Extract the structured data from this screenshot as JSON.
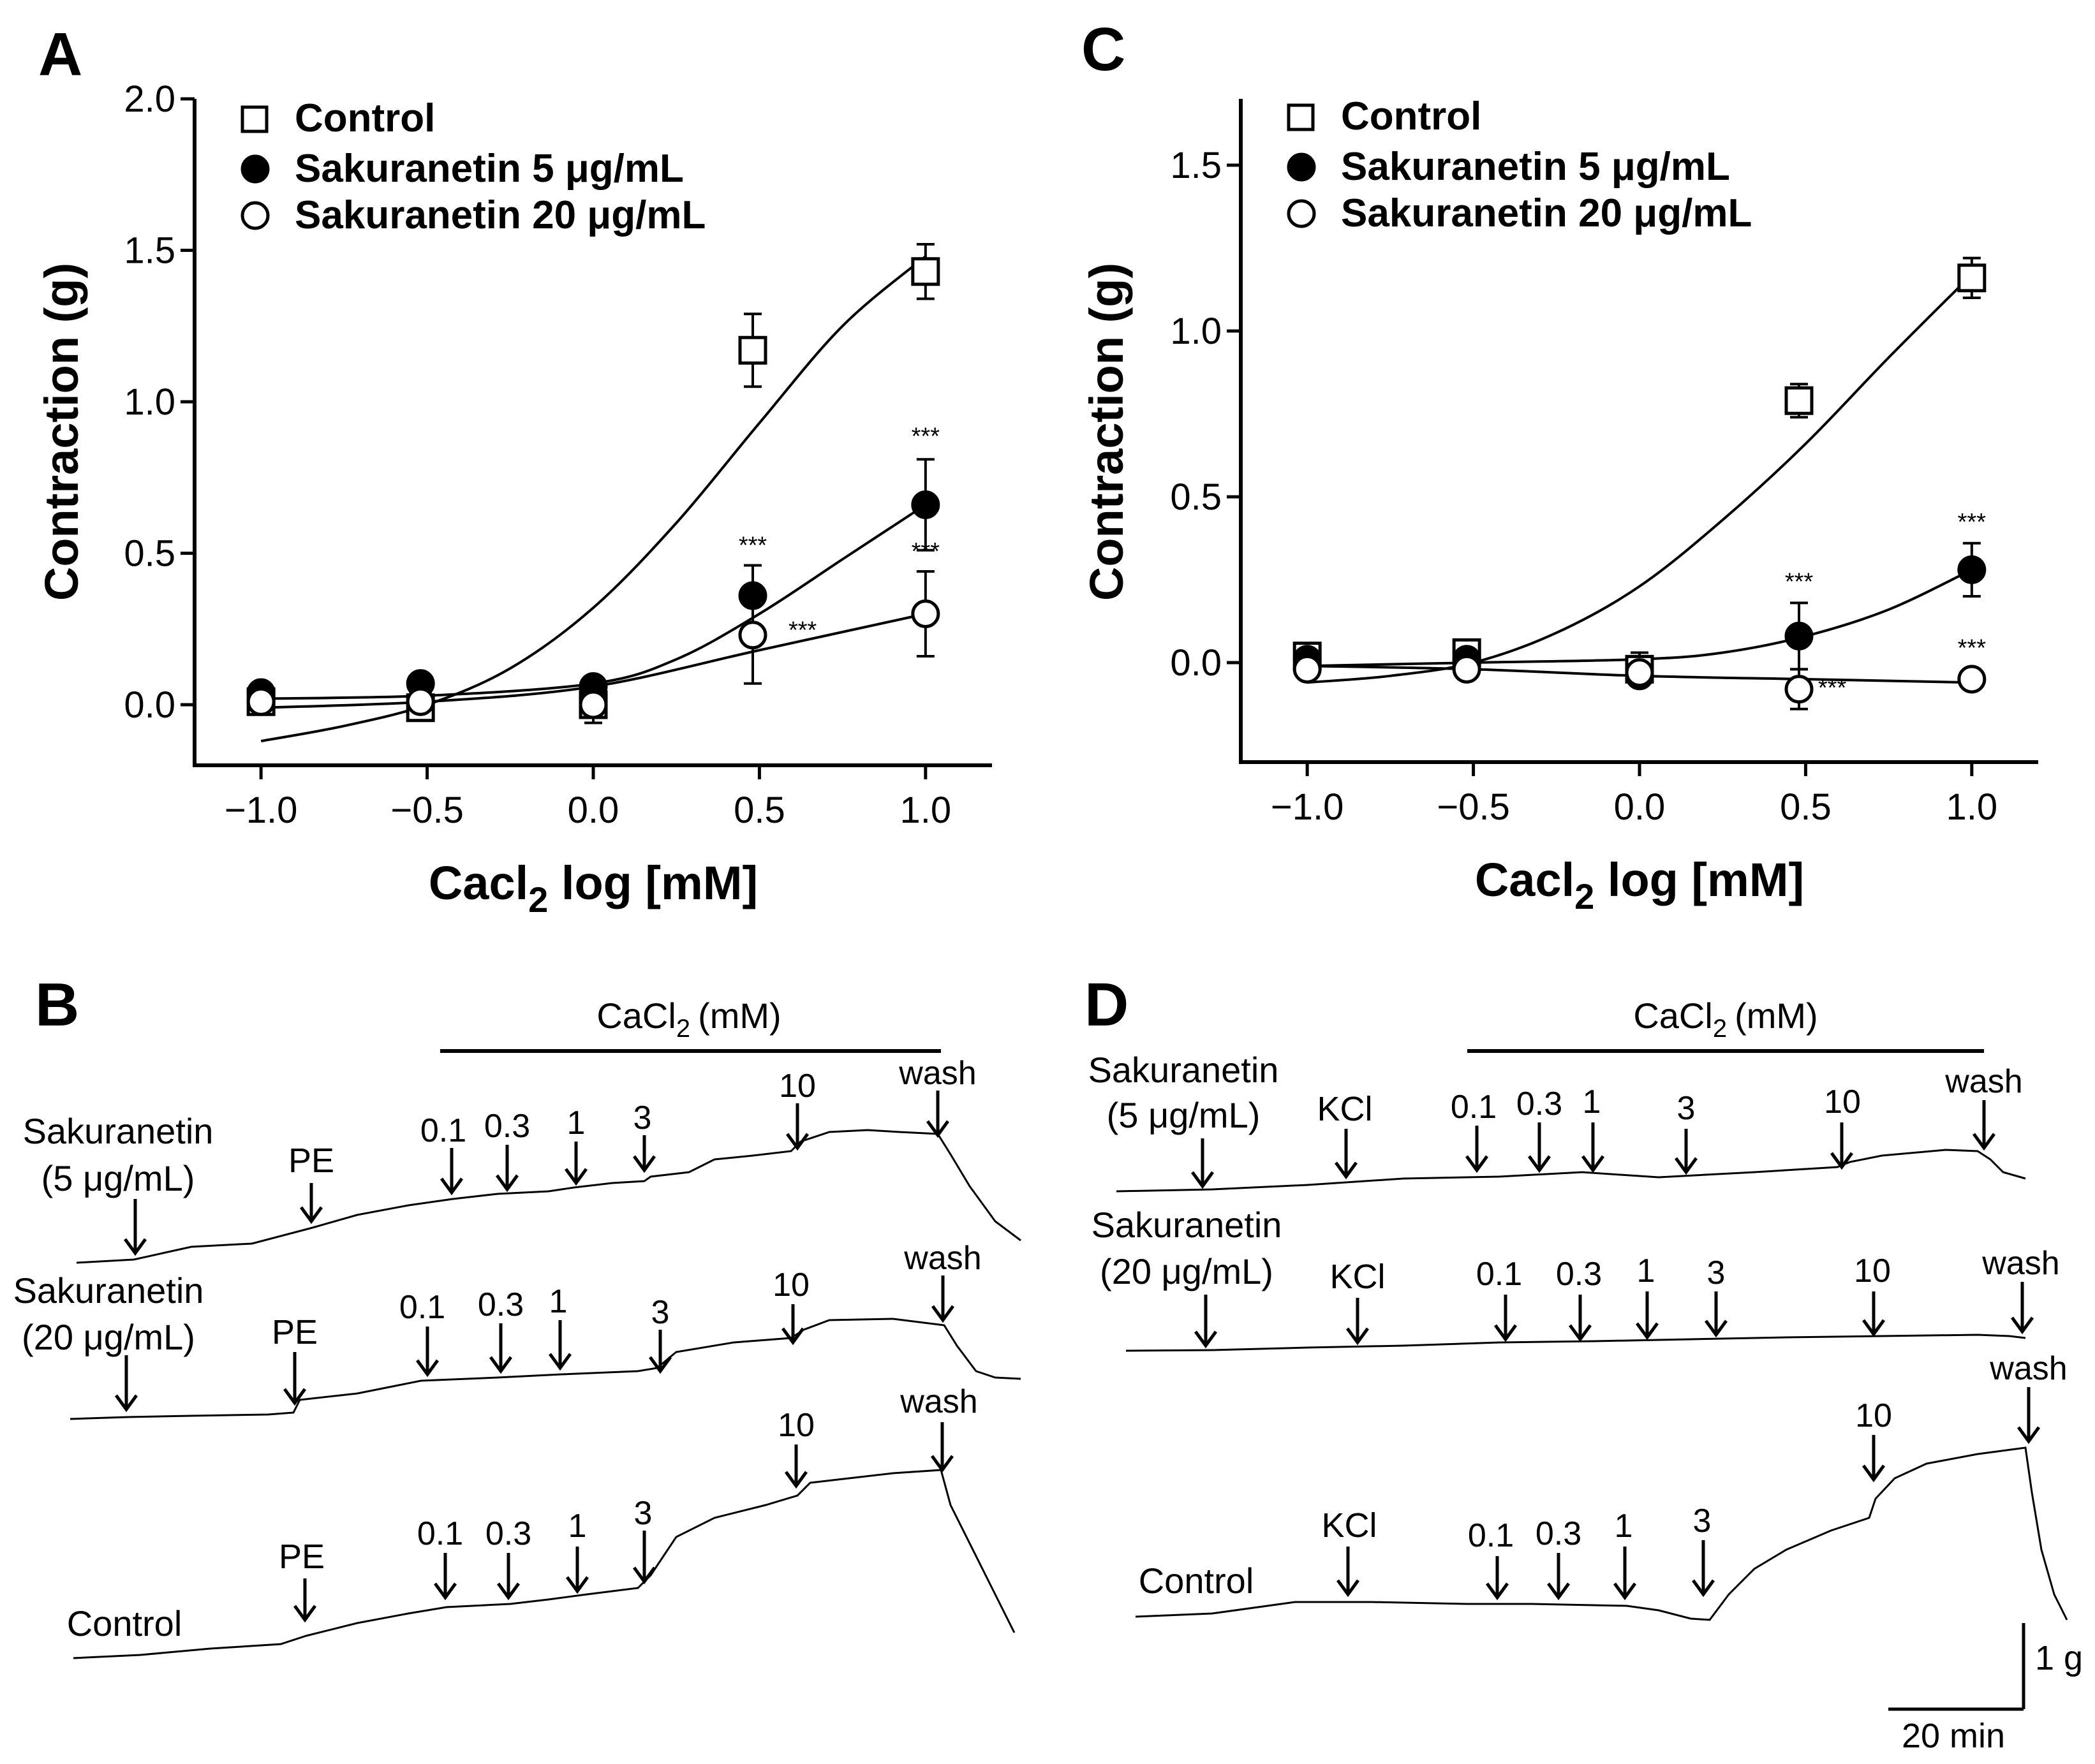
{
  "chart_data": [
    {
      "type": "scatter",
      "panel_label": "A",
      "ylabel": "Contraction (g)",
      "xlabel_parts": [
        "Cacl",
        "2",
        " log [mM]"
      ],
      "xlim": [
        -1.2,
        1.2
      ],
      "ylim": [
        -0.2,
        2.0
      ],
      "xticks": [
        -1.0,
        -0.5,
        0.0,
        0.5,
        1.0
      ],
      "xtick_labels": [
        "−1.0",
        "−0.5",
        "0.0",
        "0.5",
        "1.0"
      ],
      "yticks": [
        0.0,
        0.5,
        1.0,
        1.5,
        2.0
      ],
      "ytick_labels": [
        "0.0",
        "0.5",
        "1.0",
        "1.5",
        "2.0"
      ],
      "legend_position": "top-left",
      "series": [
        {
          "name": "Control",
          "marker": "open-square",
          "x": [
            -1.0,
            -0.52,
            0.0,
            0.48,
            1.0
          ],
          "y": [
            0.01,
            -0.01,
            0.0,
            1.17,
            1.43
          ],
          "err": [
            0.02,
            0.02,
            0.06,
            0.12,
            0.09
          ],
          "fit_x": [
            -1.0,
            -0.75,
            -0.5,
            -0.25,
            0.0,
            0.25,
            0.5,
            0.75,
            1.0
          ],
          "fit_y": [
            -0.12,
            -0.07,
            0.0,
            0.12,
            0.32,
            0.6,
            0.93,
            1.25,
            1.48
          ]
        },
        {
          "name": "Sakuranetin 5 μg/mL",
          "marker": "filled-circle",
          "x": [
            -1.0,
            -0.52,
            0.0,
            0.48,
            1.0
          ],
          "y": [
            0.04,
            0.07,
            0.06,
            0.36,
            0.66
          ],
          "err": [
            0.02,
            0.02,
            0.02,
            0.1,
            0.15
          ],
          "fit_x": [
            -1.0,
            -0.5,
            0.0,
            0.25,
            0.5,
            0.75,
            1.0
          ],
          "fit_y": [
            0.02,
            0.03,
            0.07,
            0.15,
            0.3,
            0.48,
            0.66
          ]
        },
        {
          "name": "Sakuranetin 20 μg/mL",
          "marker": "open-circle",
          "x": [
            -1.0,
            -0.52,
            0.0,
            0.48,
            1.0
          ],
          "y": [
            0.01,
            0.01,
            0.0,
            0.23,
            0.3
          ],
          "err": [
            0.02,
            0.02,
            0.04,
            0.16,
            0.14
          ],
          "fit_x": [
            -1.0,
            -0.5,
            0.0,
            0.5,
            1.0
          ],
          "fit_y": [
            -0.01,
            0.01,
            0.06,
            0.18,
            0.3
          ]
        }
      ],
      "annotations": [
        {
          "text": "***",
          "x": 1.0,
          "y": 0.86
        },
        {
          "text": "***",
          "x": 0.48,
          "y": 0.5
        },
        {
          "text": "***",
          "x": 1.0,
          "y": 0.48
        },
        {
          "text": "***",
          "x": 0.63,
          "y": 0.22
        }
      ]
    },
    {
      "type": "scatter",
      "panel_label": "C",
      "ylabel": "Contraction (g)",
      "xlabel_parts": [
        "Cacl",
        "2",
        " log [mM]"
      ],
      "xlim": [
        -1.2,
        1.2
      ],
      "ylim": [
        -0.3,
        1.7
      ],
      "xticks": [
        -1.0,
        -0.5,
        0.0,
        0.5,
        1.0
      ],
      "xtick_labels": [
        "−1.0",
        "−0.5",
        "0.0",
        "0.5",
        "1.0"
      ],
      "yticks": [
        0.0,
        0.5,
        1.0,
        1.5
      ],
      "ytick_labels": [
        "0.0",
        "0.5",
        "1.0",
        "1.5"
      ],
      "legend_position": "top-left",
      "series": [
        {
          "name": "Control",
          "marker": "open-square",
          "x": [
            -1.0,
            -0.52,
            0.0,
            0.48,
            1.0
          ],
          "y": [
            0.02,
            0.03,
            -0.02,
            0.79,
            1.16
          ],
          "err": [
            0.02,
            0.02,
            0.05,
            0.05,
            0.06
          ],
          "fit_x": [
            -1.0,
            -0.75,
            -0.5,
            -0.25,
            0.0,
            0.25,
            0.5,
            0.75,
            1.0
          ],
          "fit_y": [
            -0.06,
            -0.04,
            0.0,
            0.09,
            0.23,
            0.43,
            0.66,
            0.92,
            1.17
          ]
        },
        {
          "name": "Sakuranetin 5 μg/mL",
          "marker": "filled-circle",
          "x": [
            -1.0,
            -0.52,
            0.0,
            0.48,
            1.0
          ],
          "y": [
            0.01,
            0.01,
            -0.04,
            0.08,
            0.28
          ],
          "err": [
            0.02,
            0.02,
            0.03,
            0.1,
            0.08
          ],
          "fit_x": [
            -1.0,
            -0.5,
            0.0,
            0.25,
            0.5,
            0.75,
            1.0
          ],
          "fit_y": [
            -0.01,
            0.0,
            0.01,
            0.03,
            0.08,
            0.16,
            0.28
          ]
        },
        {
          "name": "Sakuranetin 20 μg/mL",
          "marker": "open-circle",
          "x": [
            -1.0,
            -0.52,
            0.0,
            0.48,
            1.0
          ],
          "y": [
            -0.02,
            -0.02,
            -0.03,
            -0.08,
            -0.05
          ],
          "err": [
            0.02,
            0.02,
            0.03,
            0.06,
            0.03
          ],
          "fit_x": [
            -1.0,
            -0.5,
            0.0,
            0.5,
            1.0
          ],
          "fit_y": [
            -0.01,
            -0.02,
            -0.04,
            -0.05,
            -0.06
          ]
        }
      ],
      "annotations": [
        {
          "text": "***",
          "x": 1.0,
          "y": 0.4
        },
        {
          "text": "***",
          "x": 0.48,
          "y": 0.22
        },
        {
          "text": "***",
          "x": 1.0,
          "y": 0.02
        },
        {
          "text": "***",
          "x": 0.58,
          "y": -0.1
        }
      ]
    }
  ],
  "traces_B": {
    "panel_label": "B",
    "cacl2_label": "CaCl",
    "cacl2_sub": "2",
    "cacl2_unit": "(mM)",
    "rows": [
      {
        "name": "Sakuranetin",
        "conc": "(5 μg/mL)",
        "drug": "PE",
        "doses": [
          "0.1",
          "0.3",
          "1",
          "3",
          "10"
        ],
        "wash": "wash"
      },
      {
        "name": "Sakuranetin",
        "conc": "(20 μg/mL)",
        "drug": "PE",
        "doses": [
          "0.1",
          "0.3",
          "1",
          "3",
          "10"
        ],
        "wash": "wash"
      },
      {
        "name": "Control",
        "drug": "PE",
        "doses": [
          "0.1",
          "0.3",
          "1",
          "3",
          "10"
        ],
        "wash": "wash"
      }
    ]
  },
  "traces_D": {
    "panel_label": "D",
    "cacl2_label": "CaCl",
    "cacl2_sub": "2",
    "cacl2_unit": "(mM)",
    "rows": [
      {
        "name": "Sakuranetin",
        "conc": "(5 μg/mL)",
        "drug": "KCl",
        "doses": [
          "0.1",
          "0.3",
          "1",
          "3",
          "10"
        ],
        "wash": "wash"
      },
      {
        "name": "Sakuranetin",
        "conc": "(20 μg/mL)",
        "drug": "KCl",
        "doses": [
          "0.1",
          "0.3",
          "1",
          "3",
          "10"
        ],
        "wash": "wash"
      },
      {
        "name": "Control",
        "drug": "KCl",
        "doses": [
          "0.1",
          "0.3",
          "1",
          "3",
          "10"
        ],
        "wash": "wash"
      }
    ],
    "scale_y": "1 g",
    "scale_x": "20 min"
  }
}
